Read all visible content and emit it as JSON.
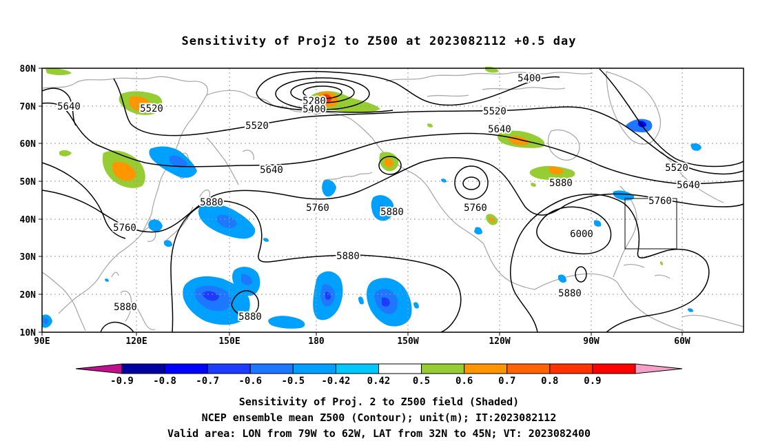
{
  "title": "Sensitivity of Proj2 to Z500 at 2023082112 +0.5 day",
  "captions": [
    "Sensitivity of Proj. 2 to Z500 field (Shaded)",
    "NCEP ensemble mean Z500 (Contour); unit(m); IT:2023082112",
    "Valid area: LON from 79W to 62W, LAT from 32N to 45N; VT: 2023082400"
  ],
  "lat_labels": [
    "80N",
    "70N",
    "60N",
    "50N",
    "40N",
    "30N",
    "20N",
    "10N"
  ],
  "lon_labels": [
    "90E",
    "120E",
    "150E",
    "180",
    "150W",
    "120W",
    "90W",
    "60W"
  ],
  "contour_labels": [
    "5640",
    "5520",
    "5280",
    "5400",
    "5520",
    "5400",
    "5520",
    "5640",
    "5640",
    "5520",
    "5640",
    "5760",
    "5880",
    "5760",
    "5880",
    "5760",
    "5880",
    "6000",
    "5880",
    "5880",
    "5880",
    "5760",
    "5880"
  ],
  "colorbar": {
    "labels": [
      "-0.9",
      "-0.8",
      "-0.7",
      "-0.6",
      "-0.5",
      "-0.42",
      "0.42",
      "0.5",
      "0.6",
      "0.7",
      "0.8",
      "0.9"
    ],
    "colors": [
      "#0000a0",
      "#0000ff",
      "#1e3cff",
      "#1e78ff",
      "#00a0ff",
      "#00c8ff",
      "#ffffff",
      "#96cd32",
      "#ff9600",
      "#ff6400",
      "#ff3200",
      "#ff0000"
    ],
    "low_extend_color": "#c0108c",
    "high_extend_color": "#f5a0c8"
  },
  "colors": {
    "contour": "#000000",
    "coast": "#aaaaaa",
    "grid": "#999999",
    "neg_strong": "#1e3cff",
    "neg_mid": "#1e78ff",
    "neg_weak": "#00a0ff",
    "pos_weak": "#96cd32",
    "pos_mid": "#ff9600",
    "pos_strong": "#ff3200"
  }
}
